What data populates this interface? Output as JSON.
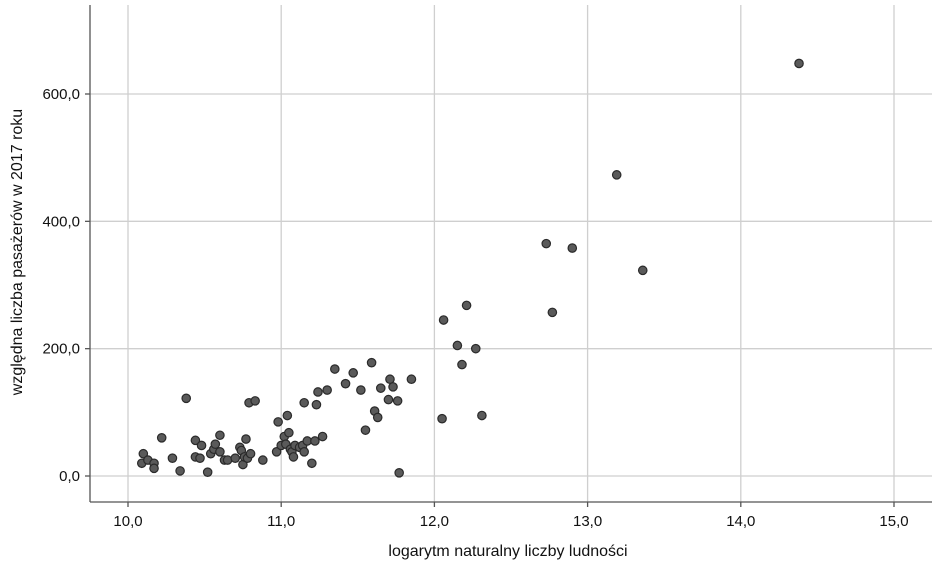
{
  "chart_data": {
    "type": "scatter",
    "title": "",
    "xlabel": "logarytm naturalny liczby ludności",
    "ylabel": "względna liczba pasażerów w 2017 roku",
    "xlim": [
      9.9,
      15.15
    ],
    "ylim": [
      -40,
      700
    ],
    "grid": true,
    "x_ticks": [
      10.0,
      11.0,
      12.0,
      13.0,
      14.0,
      15.0
    ],
    "x_tick_labels": [
      "10,0",
      "11,0",
      "12,0",
      "13,0",
      "14,0",
      "15,0"
    ],
    "y_ticks": [
      0,
      200,
      400,
      600
    ],
    "y_tick_labels": [
      "0,0",
      "200,0",
      "400,0",
      "600,0"
    ],
    "points": [
      [
        10.09,
        20
      ],
      [
        10.1,
        35
      ],
      [
        10.13,
        25
      ],
      [
        10.17,
        20
      ],
      [
        10.17,
        12
      ],
      [
        10.22,
        60
      ],
      [
        10.29,
        28
      ],
      [
        10.34,
        8
      ],
      [
        10.38,
        122
      ],
      [
        10.44,
        56
      ],
      [
        10.44,
        30
      ],
      [
        10.47,
        28
      ],
      [
        10.48,
        48
      ],
      [
        10.52,
        6
      ],
      [
        10.54,
        35
      ],
      [
        10.56,
        42
      ],
      [
        10.57,
        50
      ],
      [
        10.6,
        64
      ],
      [
        10.6,
        38
      ],
      [
        10.63,
        25
      ],
      [
        10.65,
        25
      ],
      [
        10.7,
        28
      ],
      [
        10.73,
        45
      ],
      [
        10.74,
        40
      ],
      [
        10.75,
        18
      ],
      [
        10.76,
        30
      ],
      [
        10.77,
        58
      ],
      [
        10.78,
        28
      ],
      [
        10.79,
        115
      ],
      [
        10.8,
        35
      ],
      [
        10.83,
        118
      ],
      [
        10.88,
        25
      ],
      [
        10.97,
        38
      ],
      [
        10.98,
        85
      ],
      [
        11.0,
        48
      ],
      [
        11.02,
        62
      ],
      [
        11.03,
        50
      ],
      [
        11.04,
        95
      ],
      [
        11.05,
        68
      ],
      [
        11.06,
        42
      ],
      [
        11.07,
        38
      ],
      [
        11.08,
        30
      ],
      [
        11.09,
        48
      ],
      [
        11.12,
        45
      ],
      [
        11.14,
        48
      ],
      [
        11.15,
        38
      ],
      [
        11.15,
        115
      ],
      [
        11.17,
        55
      ],
      [
        11.2,
        20
      ],
      [
        11.22,
        55
      ],
      [
        11.23,
        112
      ],
      [
        11.24,
        132
      ],
      [
        11.27,
        62
      ],
      [
        11.3,
        135
      ],
      [
        11.35,
        168
      ],
      [
        11.42,
        145
      ],
      [
        11.47,
        162
      ],
      [
        11.52,
        135
      ],
      [
        11.55,
        72
      ],
      [
        11.59,
        178
      ],
      [
        11.61,
        102
      ],
      [
        11.63,
        92
      ],
      [
        11.65,
        138
      ],
      [
        11.7,
        120
      ],
      [
        11.71,
        152
      ],
      [
        11.73,
        140
      ],
      [
        11.76,
        118
      ],
      [
        11.77,
        5
      ],
      [
        11.85,
        152
      ],
      [
        12.05,
        90
      ],
      [
        12.06,
        245
      ],
      [
        12.15,
        205
      ],
      [
        12.18,
        175
      ],
      [
        12.21,
        268
      ],
      [
        12.27,
        200
      ],
      [
        12.31,
        95
      ],
      [
        12.73,
        365
      ],
      [
        12.77,
        257
      ],
      [
        12.9,
        358
      ],
      [
        13.19,
        473
      ],
      [
        13.36,
        323
      ],
      [
        14.38,
        648
      ]
    ]
  }
}
